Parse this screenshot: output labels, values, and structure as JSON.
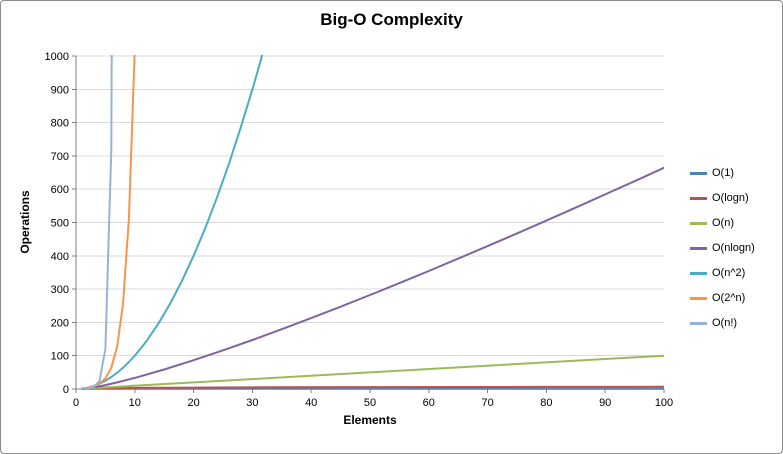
{
  "chart_data": {
    "type": "line",
    "title": "Big-O Complexity",
    "xlabel": "Elements",
    "ylabel": "Operations",
    "xlim": [
      0,
      100
    ],
    "ylim": [
      0,
      1000
    ],
    "x_ticks": [
      0,
      10,
      20,
      30,
      40,
      50,
      60,
      70,
      80,
      90,
      100
    ],
    "y_ticks": [
      0,
      100,
      200,
      300,
      400,
      500,
      600,
      700,
      800,
      900,
      1000
    ],
    "grid": "horizontal",
    "legend_position": "right",
    "gridline_color": "#D9D9D9",
    "axis_color": "#808080",
    "background_color": "#FFFFFF",
    "series": [
      {
        "name": "O(1)",
        "color": "#4F81BD",
        "points": [
          [
            1,
            1
          ],
          [
            100,
            1
          ]
        ]
      },
      {
        "name": "O(logn)",
        "color": "#C0504D",
        "points": [
          [
            1,
            0
          ],
          [
            2,
            1
          ],
          [
            3,
            1.6
          ],
          [
            4,
            2
          ],
          [
            6,
            2.6
          ],
          [
            8,
            3
          ],
          [
            12,
            3.6
          ],
          [
            16,
            4
          ],
          [
            24,
            4.6
          ],
          [
            32,
            5
          ],
          [
            48,
            5.6
          ],
          [
            64,
            6
          ],
          [
            80,
            6.3
          ],
          [
            100,
            6.6
          ]
        ]
      },
      {
        "name": "O(n)",
        "color": "#9BBB59",
        "points": [
          [
            1,
            1
          ],
          [
            25,
            25
          ],
          [
            50,
            50
          ],
          [
            75,
            75
          ],
          [
            100,
            100
          ]
        ]
      },
      {
        "name": "O(nlogn)",
        "color": "#8064A2",
        "points": [
          [
            1,
            0
          ],
          [
            2,
            2
          ],
          [
            3,
            4.8
          ],
          [
            5,
            11.6
          ],
          [
            7,
            19.7
          ],
          [
            10,
            33.2
          ],
          [
            15,
            58.6
          ],
          [
            20,
            86.4
          ],
          [
            25,
            116.1
          ],
          [
            30,
            147.2
          ],
          [
            35,
            179.5
          ],
          [
            40,
            212.9
          ],
          [
            45,
            247.2
          ],
          [
            50,
            282.2
          ],
          [
            55,
            317.9
          ],
          [
            60,
            354.4
          ],
          [
            65,
            391.5
          ],
          [
            70,
            429
          ],
          [
            75,
            467.2
          ],
          [
            80,
            505.8
          ],
          [
            85,
            544.8
          ],
          [
            90,
            584.3
          ],
          [
            95,
            624.1
          ],
          [
            100,
            664.4
          ]
        ]
      },
      {
        "name": "O(n^2)",
        "color": "#4BACC6",
        "points": [
          [
            1,
            1
          ],
          [
            2,
            4
          ],
          [
            3,
            9
          ],
          [
            4,
            16
          ],
          [
            5,
            25
          ],
          [
            6,
            36
          ],
          [
            7,
            49
          ],
          [
            8,
            64
          ],
          [
            9,
            81
          ],
          [
            10,
            100
          ],
          [
            12,
            144
          ],
          [
            14,
            196
          ],
          [
            16,
            256
          ],
          [
            18,
            324
          ],
          [
            20,
            400
          ],
          [
            22,
            484
          ],
          [
            24,
            576
          ],
          [
            26,
            676
          ],
          [
            28,
            784
          ],
          [
            30,
            900
          ],
          [
            31,
            961
          ],
          [
            32,
            1024
          ]
        ]
      },
      {
        "name": "O(2^n)",
        "color": "#F79646",
        "points": [
          [
            1,
            2
          ],
          [
            2,
            4
          ],
          [
            3,
            8
          ],
          [
            4,
            16
          ],
          [
            5,
            32
          ],
          [
            6,
            64
          ],
          [
            7,
            128
          ],
          [
            8,
            256
          ],
          [
            9,
            512
          ],
          [
            10,
            1024
          ]
        ]
      },
      {
        "name": "O(n!)",
        "color": "#95B3D7",
        "points": [
          [
            1,
            1
          ],
          [
            2,
            2
          ],
          [
            3,
            6
          ],
          [
            4,
            24
          ],
          [
            5,
            120
          ],
          [
            6,
            720
          ],
          [
            7,
            5040
          ]
        ]
      }
    ]
  }
}
